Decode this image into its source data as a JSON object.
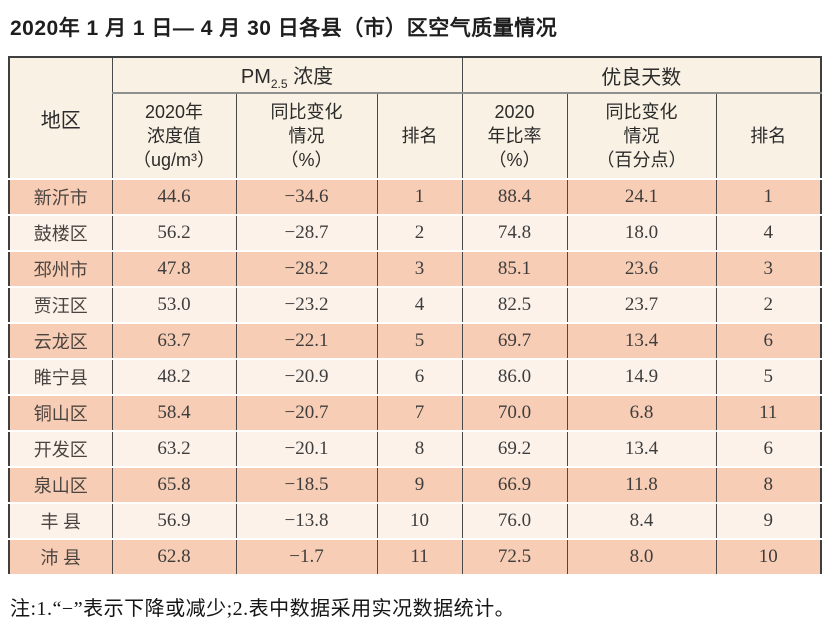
{
  "page": {
    "title": "2020年 1 月 1 日— 4 月 30 日各县（市）区空气质量情况",
    "footnote": "注:1.“−”表示下降或减少;2.表中数据采用实况数据统计。"
  },
  "colors": {
    "row_peach": "#f8cdb5",
    "row_light": "#fdf2ea",
    "header_cream": "#f9f1e3",
    "outer_border": "#3f3f3f",
    "inner_line": "#4a4a4a",
    "text": "#3d3d3d"
  },
  "table": {
    "region_header": "地区",
    "pm_group": {
      "label_main": "PM",
      "label_sub": "2.5",
      "label_rest": " 浓度",
      "col_value_lines": [
        "2020年",
        "浓度值",
        "（ug/m³）"
      ],
      "col_change_lines": [
        "同比变化",
        "情况",
        "（%）"
      ],
      "col_rank": "排名"
    },
    "good_group": {
      "label": "优良天数",
      "col_rate_lines": [
        "2020",
        "年比率",
        "（%）"
      ],
      "col_change_lines": [
        "同比变化",
        "情况",
        "（百分点）"
      ],
      "col_rank": "排名"
    },
    "rows": [
      {
        "region": "新沂市",
        "pm_value": "44.6",
        "pm_change": "−34.6",
        "pm_rank": "1",
        "good_rate": "88.4",
        "good_change": "24.1",
        "good_rank": "1"
      },
      {
        "region": "鼓楼区",
        "pm_value": "56.2",
        "pm_change": "−28.7",
        "pm_rank": "2",
        "good_rate": "74.8",
        "good_change": "18.0",
        "good_rank": "4"
      },
      {
        "region": "邳州市",
        "pm_value": "47.8",
        "pm_change": "−28.2",
        "pm_rank": "3",
        "good_rate": "85.1",
        "good_change": "23.6",
        "good_rank": "3"
      },
      {
        "region": "贾汪区",
        "pm_value": "53.0",
        "pm_change": "−23.2",
        "pm_rank": "4",
        "good_rate": "82.5",
        "good_change": "23.7",
        "good_rank": "2"
      },
      {
        "region": "云龙区",
        "pm_value": "63.7",
        "pm_change": "−22.1",
        "pm_rank": "5",
        "good_rate": "69.7",
        "good_change": "13.4",
        "good_rank": "6"
      },
      {
        "region": "睢宁县",
        "pm_value": "48.2",
        "pm_change": "−20.9",
        "pm_rank": "6",
        "good_rate": "86.0",
        "good_change": "14.9",
        "good_rank": "5"
      },
      {
        "region": "铜山区",
        "pm_value": "58.4",
        "pm_change": "−20.7",
        "pm_rank": "7",
        "good_rate": "70.0",
        "good_change": "6.8",
        "good_rank": "11"
      },
      {
        "region": "开发区",
        "pm_value": "63.2",
        "pm_change": "−20.1",
        "pm_rank": "8",
        "good_rate": "69.2",
        "good_change": "13.4",
        "good_rank": "6"
      },
      {
        "region": "泉山区",
        "pm_value": "65.8",
        "pm_change": "−18.5",
        "pm_rank": "9",
        "good_rate": "66.9",
        "good_change": "11.8",
        "good_rank": "8"
      },
      {
        "region": "丰 县",
        "pm_value": "56.9",
        "pm_change": "−13.8",
        "pm_rank": "10",
        "good_rate": "76.0",
        "good_change": "8.4",
        "good_rank": "9"
      },
      {
        "region": "沛 县",
        "pm_value": "62.8",
        "pm_change": "−1.7",
        "pm_rank": "11",
        "good_rate": "72.5",
        "good_change": "8.0",
        "good_rank": "10"
      }
    ]
  },
  "chart_data": {
    "type": "table",
    "title": "2020年1月1日—4月30日各县（市）区空气质量情况",
    "columns": [
      "地区",
      "PM2.5浓度 2020年浓度值（ug/m³）",
      "PM2.5浓度 同比变化情况（%）",
      "PM2.5浓度 排名",
      "优良天数 2020年比率（%）",
      "优良天数 同比变化情况（百分点）",
      "优良天数 排名"
    ],
    "rows": [
      [
        "新沂市",
        44.6,
        -34.6,
        1,
        88.4,
        24.1,
        1
      ],
      [
        "鼓楼区",
        56.2,
        -28.7,
        2,
        74.8,
        18.0,
        4
      ],
      [
        "邳州市",
        47.8,
        -28.2,
        3,
        85.1,
        23.6,
        3
      ],
      [
        "贾汪区",
        53.0,
        -23.2,
        4,
        82.5,
        23.7,
        2
      ],
      [
        "云龙区",
        63.7,
        -22.1,
        5,
        69.7,
        13.4,
        6
      ],
      [
        "睢宁县",
        48.2,
        -20.9,
        6,
        86.0,
        14.9,
        5
      ],
      [
        "铜山区",
        58.4,
        -20.7,
        7,
        70.0,
        6.8,
        11
      ],
      [
        "开发区",
        63.2,
        -20.1,
        8,
        69.2,
        13.4,
        6
      ],
      [
        "泉山区",
        65.8,
        -18.5,
        9,
        66.9,
        11.8,
        8
      ],
      [
        "丰县",
        56.9,
        -13.8,
        10,
        76.0,
        8.4,
        9
      ],
      [
        "沛县",
        62.8,
        -1.7,
        11,
        72.5,
        8.0,
        10
      ]
    ],
    "footnote": "注:1.“−”表示下降或减少;2.表中数据采用实况数据统计。"
  }
}
